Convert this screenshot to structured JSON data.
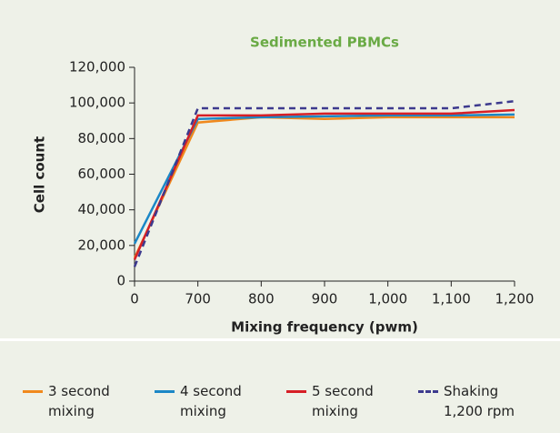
{
  "chart_data": {
    "type": "line",
    "title": "Sedimented PBMCs",
    "x_label": "Mixing frequency (pwm)",
    "y_label": "Cell count",
    "categories": [
      "0",
      "700",
      "800",
      "900",
      "1,000",
      "1,100",
      "1,200"
    ],
    "series": [
      {
        "name": "3 second mixing",
        "color": "#f0891d",
        "values": [
          13000,
          89000,
          92000,
          91000,
          92000,
          92000,
          92000
        ]
      },
      {
        "name": "4 second mixing",
        "color": "#1b87c6",
        "values": [
          21000,
          91000,
          92000,
          92500,
          93000,
          93000,
          93500
        ]
      },
      {
        "name": "5 second mixing",
        "color": "#d61f26",
        "values": [
          12000,
          93000,
          93000,
          94000,
          94000,
          94000,
          96000
        ]
      },
      {
        "name": "Shaking 1,200 rpm",
        "color": "#3d3a8e",
        "dashed": true,
        "values": [
          8000,
          97000,
          97000,
          97000,
          97000,
          97000,
          101000
        ]
      }
    ],
    "ylim": [
      0,
      120000
    ],
    "yticks": [
      0,
      {
        "value": 20000,
        "label": "20,000"
      },
      {
        "value": 40000,
        "label": "40,000"
      },
      {
        "value": 60000,
        "label": "60,000"
      },
      {
        "value": 80000,
        "label": "80,000"
      },
      {
        "value": 100000,
        "label": "100,000"
      },
      {
        "value": 120000,
        "label": "120,000"
      }
    ],
    "grid": false,
    "legend": "bottom"
  }
}
